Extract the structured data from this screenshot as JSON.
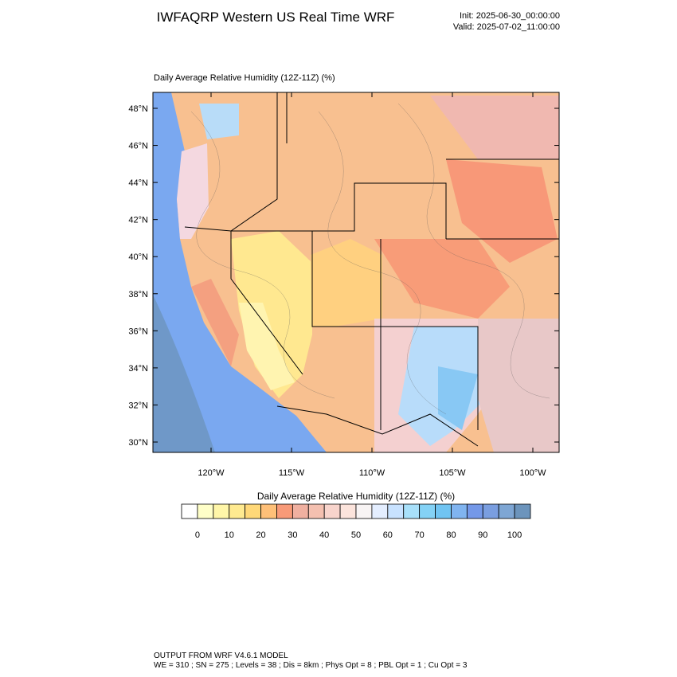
{
  "header": {
    "title": "IWFAQRP Western US Real Time WRF",
    "init": "Init: 2025-06-30_00:00:00",
    "valid": "Valid: 2025-07-02_11:00:00"
  },
  "map": {
    "title": "Daily Average Relative Humidity (12Z-11Z)   (%)",
    "lat_labels": [
      "48°N",
      "46°N",
      "44°N",
      "42°N",
      "40°N",
      "38°N",
      "36°N",
      "34°N",
      "32°N",
      "30°N"
    ],
    "lon_labels": [
      "120°W",
      "115°W",
      "110°W",
      "105°W",
      "100°W"
    ]
  },
  "colorbar": {
    "title": "Daily Average Relative Humidity (12Z-11Z)  (%)",
    "colors": [
      "#ffffff",
      "#ffffc8",
      "#fff6a8",
      "#ffea90",
      "#ffd878",
      "#ffc078",
      "#f89a78",
      "#f0b0a0",
      "#f4c0b0",
      "#f8d4cc",
      "#fce4dc",
      "#f8f4f4",
      "#e4eeff",
      "#c8e2ff",
      "#a8e0fa",
      "#84d2f6",
      "#70c4f2",
      "#80b4f0",
      "#7498e8",
      "#7a9ee0",
      "#7ea6d4",
      "#6c94bc"
    ],
    "labels": [
      0,
      10,
      20,
      30,
      40,
      50,
      60,
      70,
      80,
      90,
      100
    ]
  },
  "footer": {
    "line1": "OUTPUT FROM WRF V4.6.1 MODEL",
    "line2": "WE = 310 ; SN = 275 ; Levels = 38 ; Dis = 8km ; Phys Opt = 8 ; PBL Opt = 1 ; Cu Opt = 3"
  }
}
